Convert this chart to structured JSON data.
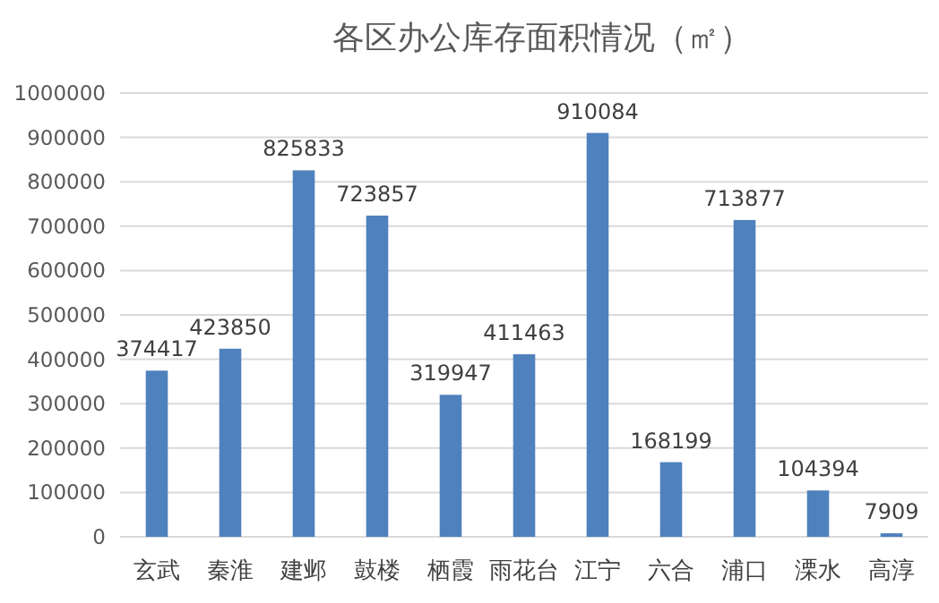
{
  "chart_data": {
    "type": "bar",
    "title": "各区办公库存面积情况（㎡）",
    "categories": [
      "玄武",
      "秦淮",
      "建邺",
      "鼓楼",
      "栖霞",
      "雨花台",
      "江宁",
      "六合",
      "浦口",
      "溧水",
      "高淳"
    ],
    "values": [
      374417,
      423850,
      825833,
      723857,
      319947,
      411463,
      910084,
      168199,
      713877,
      104394,
      7909
    ],
    "color": "#4f81bd",
    "ylim": [
      0,
      1000000
    ],
    "yticks": [
      0,
      100000,
      200000,
      300000,
      400000,
      500000,
      600000,
      700000,
      800000,
      900000,
      1000000
    ],
    "grid": "y",
    "data_labels": true
  }
}
